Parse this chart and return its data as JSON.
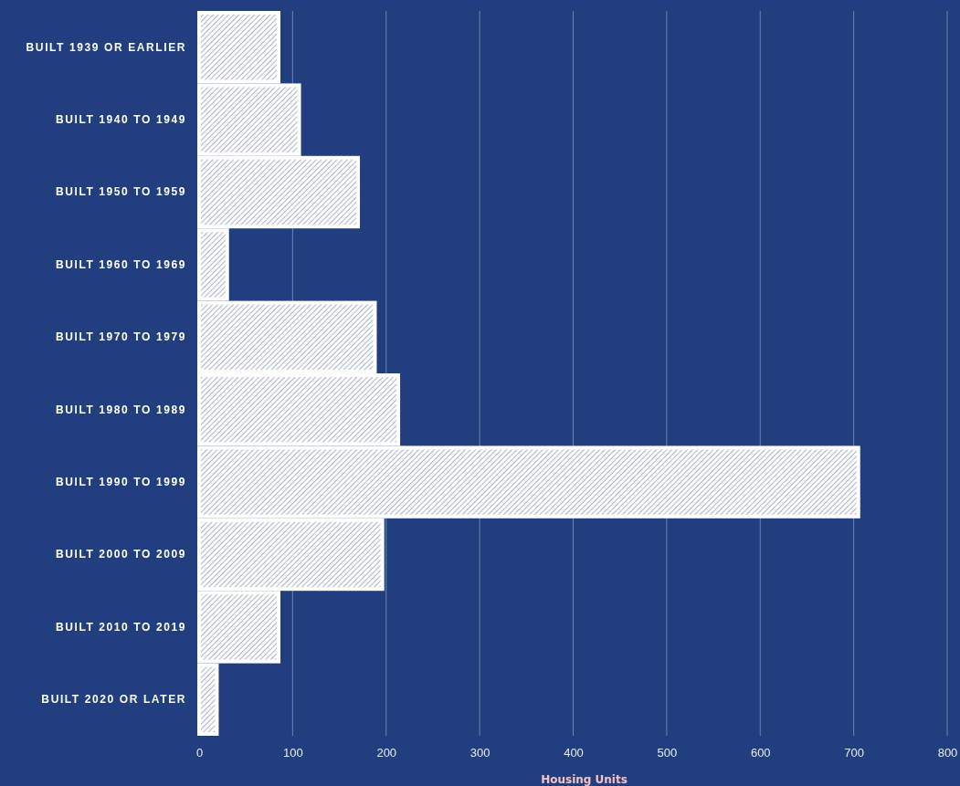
{
  "chart_data": {
    "type": "bar",
    "orientation": "horizontal",
    "xlabel": "Housing Units",
    "categories": [
      "BUILT 1939 OR EARLIER",
      "BUILT 1940 TO 1949",
      "BUILT 1950 TO 1959",
      "BUILT 1960 TO 1969",
      "BUILT 1970 TO 1979",
      "BUILT 1980 TO 1989",
      "BUILT 1990 TO 1999",
      "BUILT 2000 TO 2009",
      "BUILT 2010 TO 2019",
      "BUILT 2020 OR LATER"
    ],
    "values": [
      85,
      107,
      170,
      30,
      188,
      213,
      705,
      196,
      85,
      19
    ],
    "color": "#ffffff",
    "xlim": [
      0,
      800
    ],
    "xticks": [
      0,
      100,
      200,
      300,
      400,
      500,
      600,
      700,
      800
    ],
    "grid": "x"
  }
}
